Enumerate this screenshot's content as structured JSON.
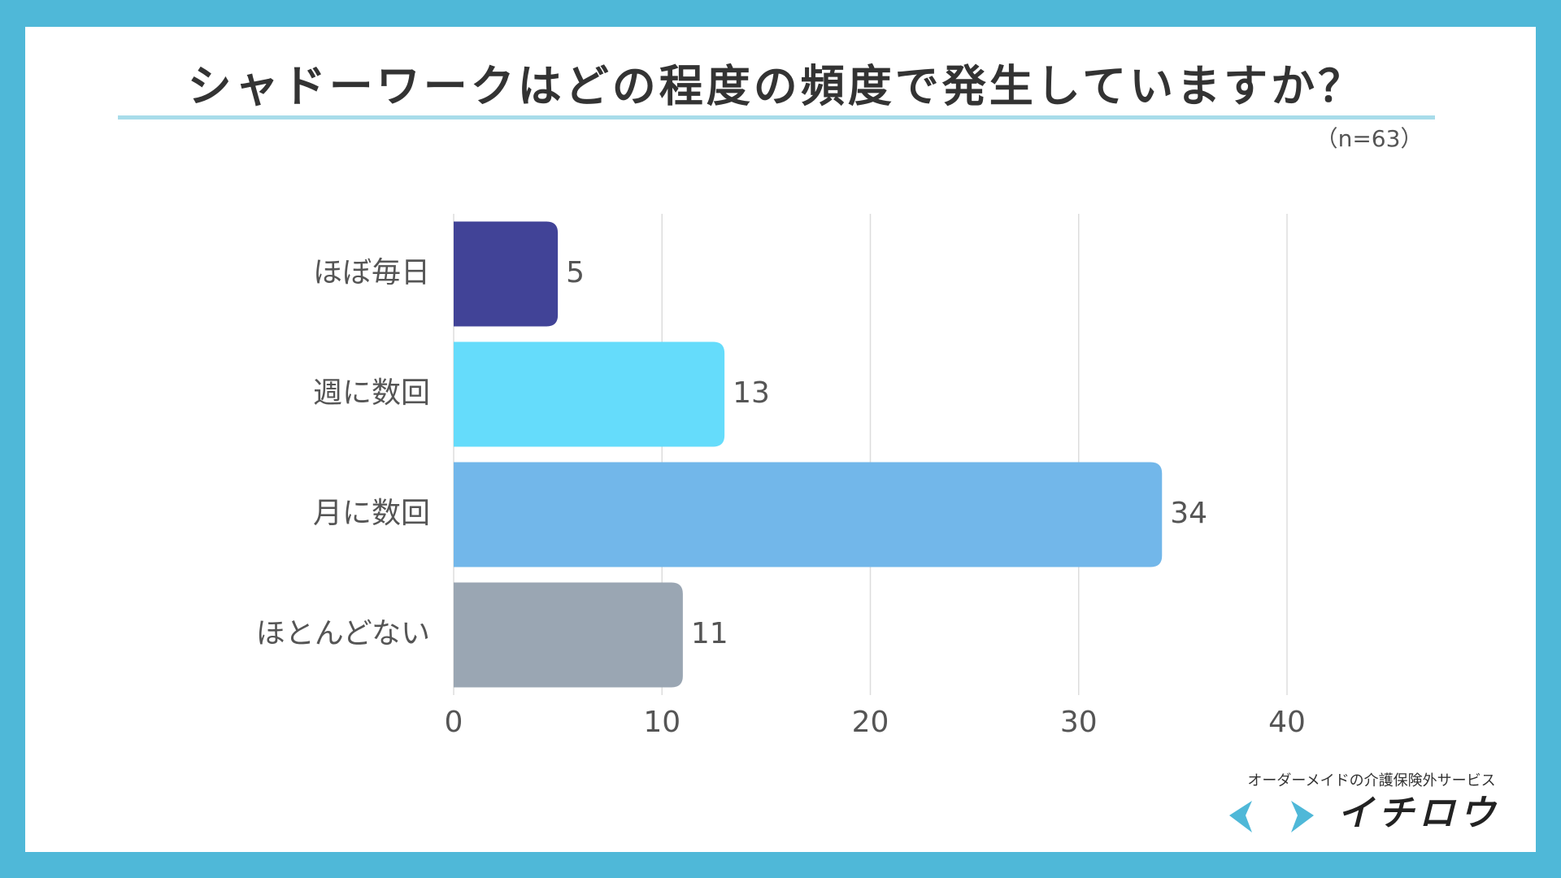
{
  "chart_data": {
    "type": "bar",
    "orientation": "horizontal",
    "title": "シャドーワークはどの程度の頻度で発生していますか？",
    "subtitle": "（n=63）",
    "categories": [
      "ほぼ毎日",
      "週に数回",
      "月に数回",
      "ほとんどない"
    ],
    "values": [
      5,
      13,
      34,
      11
    ],
    "colors": [
      "#414397",
      "#65dcfb",
      "#72b7ea",
      "#9aa6b3"
    ],
    "xlim": [
      0,
      40
    ],
    "xticks": [
      0,
      10,
      20,
      30,
      40
    ],
    "grid": true
  },
  "logo": {
    "tagline": "オーダーメイドの介護保険外サービス",
    "name": "イチロウ"
  }
}
